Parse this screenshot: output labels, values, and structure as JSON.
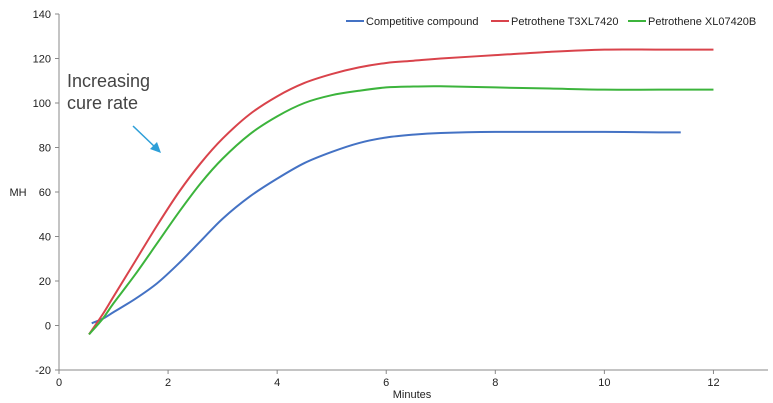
{
  "chart_data": {
    "type": "line",
    "title": "",
    "xlabel": "Minutes",
    "ylabel": "MH",
    "xlim": [
      0,
      13
    ],
    "ylim": [
      -20,
      140
    ],
    "xticks": [
      0,
      2,
      4,
      6,
      8,
      10,
      12
    ],
    "yticks": [
      -20,
      0,
      20,
      40,
      60,
      80,
      100,
      120,
      140
    ],
    "grid": false,
    "legend_position": "top-right",
    "series": [
      {
        "name": "Competitive compound",
        "color": "#4472C4",
        "x": [
          0.6,
          0.8,
          1.0,
          1.4,
          1.8,
          2.2,
          2.6,
          3.0,
          3.5,
          4.0,
          4.5,
          5.0,
          5.5,
          6.0,
          6.5,
          7.0,
          8.0,
          9.0,
          10.0,
          11.0,
          11.4
        ],
        "y": [
          1,
          3,
          6,
          12,
          19,
          28,
          38,
          48,
          58,
          66,
          73,
          78,
          82,
          84.5,
          85.8,
          86.5,
          87,
          87,
          87,
          86.8,
          86.8
        ]
      },
      {
        "name": "Petrothene T3XL7420",
        "color": "#D9434B",
        "x": [
          0.55,
          0.8,
          1.0,
          1.4,
          1.8,
          2.2,
          2.6,
          3.0,
          3.5,
          4.0,
          4.5,
          5.0,
          5.5,
          6.0,
          6.5,
          7.0,
          8.0,
          9.0,
          10.0,
          11.0,
          12.0
        ],
        "y": [
          -4,
          5,
          13,
          29,
          45,
          60,
          73,
          84,
          95,
          103,
          109,
          113,
          116,
          118,
          119,
          120,
          121.5,
          123,
          124,
          124,
          124
        ]
      },
      {
        "name": "Petrothene XL07420B",
        "color": "#3CB43C",
        "x": [
          0.55,
          0.8,
          1.0,
          1.4,
          1.8,
          2.2,
          2.6,
          3.0,
          3.5,
          4.0,
          4.5,
          5.0,
          5.5,
          6.0,
          6.5,
          7.0,
          8.0,
          9.0,
          10.0,
          11.0,
          12.0
        ],
        "y": [
          -4,
          3,
          10,
          23,
          37,
          51,
          64,
          75,
          86,
          94,
          100,
          103.5,
          105.5,
          107,
          107.4,
          107.5,
          107,
          106.5,
          106,
          106,
          106
        ]
      }
    ],
    "annotation": {
      "text_lines": [
        "Increasing",
        "cure rate"
      ],
      "arrow_color": "#2E9FD8"
    }
  }
}
